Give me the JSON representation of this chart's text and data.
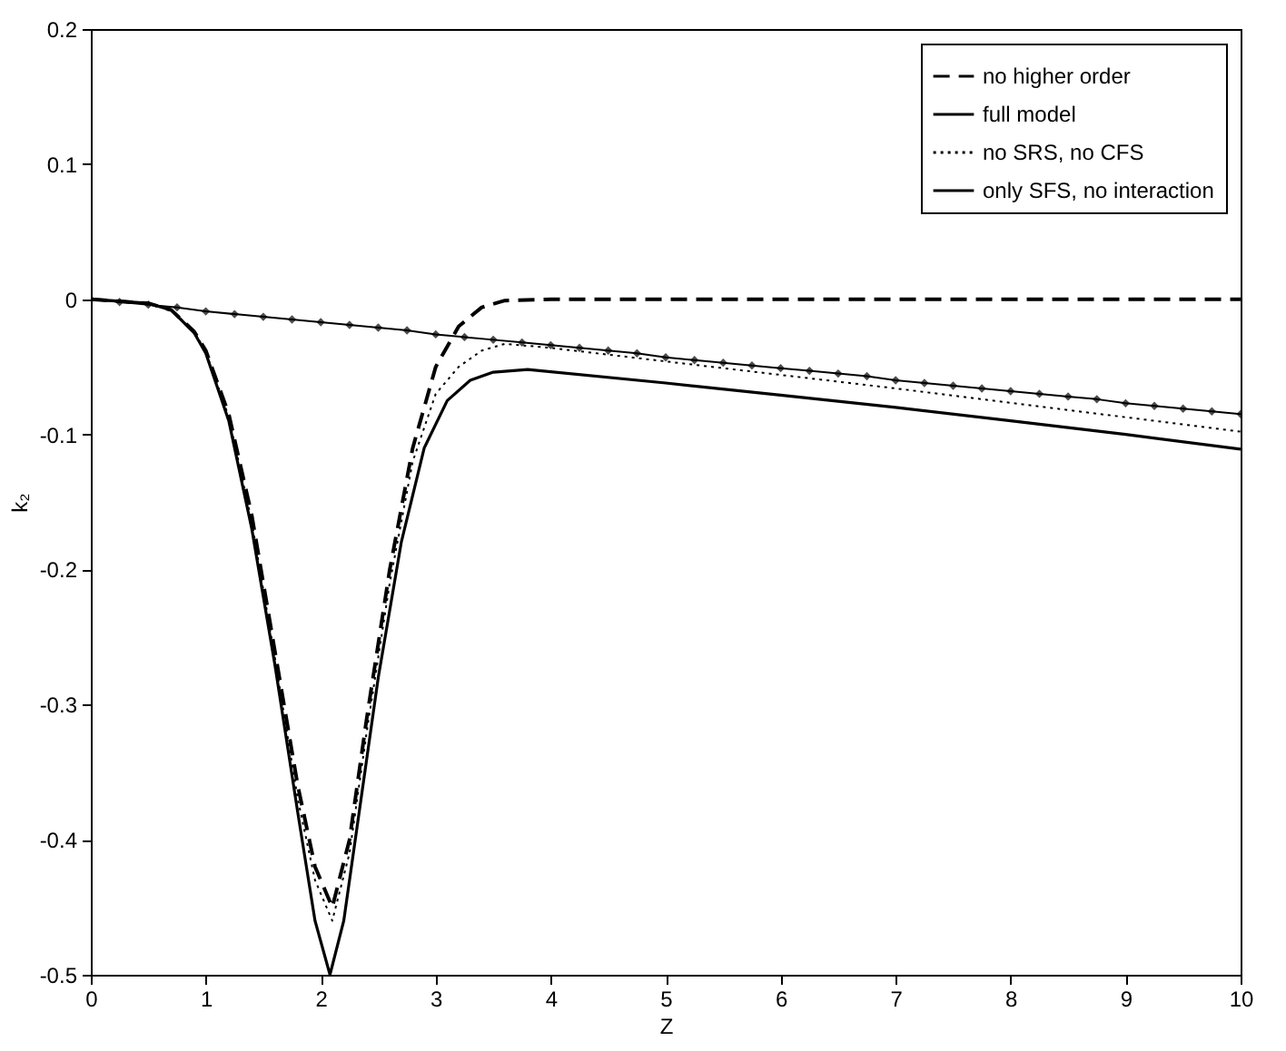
{
  "chart_data": {
    "type": "line",
    "xlabel": "Z",
    "ylabel": "k₂",
    "xlim": [
      0,
      10
    ],
    "xticks": [
      0,
      1,
      2,
      3,
      4,
      5,
      6,
      7,
      8,
      9,
      10
    ],
    "ylim": [
      -0.5,
      0.2
    ],
    "yticks": [
      -0.5,
      -0.4,
      -0.3,
      -0.2,
      -0.1,
      0,
      0.1,
      0.2
    ],
    "grid": false,
    "legend": "top right",
    "series": [
      {
        "name": "no higher order",
        "color": "#000000",
        "line_style": "dashed",
        "x": [
          0,
          0.5,
          0.7,
          0.9,
          1.0,
          1.2,
          1.4,
          1.6,
          1.8,
          1.95,
          2.1,
          2.25,
          2.4,
          2.6,
          2.8,
          3.0,
          3.2,
          3.4,
          3.6,
          4,
          10
        ],
        "values": [
          0,
          -0.003,
          -0.008,
          -0.024,
          -0.038,
          -0.085,
          -0.16,
          -0.26,
          -0.36,
          -0.42,
          -0.45,
          -0.4,
          -0.31,
          -0.2,
          -0.11,
          -0.05,
          -0.02,
          -0.006,
          -0.001,
          0,
          0
        ]
      },
      {
        "name": "full model",
        "color": "#000000",
        "line_style": "solid",
        "x": [
          0,
          0.5,
          0.7,
          0.9,
          1.0,
          1.2,
          1.4,
          1.6,
          1.8,
          1.95,
          2.08,
          2.2,
          2.35,
          2.5,
          2.7,
          2.9,
          3.1,
          3.3,
          3.5,
          3.8,
          5,
          6,
          7,
          8,
          9,
          10
        ],
        "values": [
          0,
          -0.003,
          -0.008,
          -0.025,
          -0.04,
          -0.09,
          -0.17,
          -0.27,
          -0.38,
          -0.46,
          -0.5,
          -0.46,
          -0.37,
          -0.28,
          -0.18,
          -0.11,
          -0.075,
          -0.06,
          -0.054,
          -0.052,
          -0.062,
          -0.071,
          -0.08,
          -0.09,
          -0.1,
          -0.111
        ]
      },
      {
        "name": "no SRS, no CFS",
        "color": "#000000",
        "line_style": "dotted",
        "x": [
          0,
          0.5,
          0.7,
          0.9,
          1.0,
          1.2,
          1.4,
          1.6,
          1.8,
          1.95,
          2.1,
          2.25,
          2.4,
          2.6,
          2.8,
          3.0,
          3.2,
          3.4,
          3.6,
          4,
          7,
          10
        ],
        "values": [
          0,
          -0.003,
          -0.008,
          -0.024,
          -0.039,
          -0.087,
          -0.165,
          -0.265,
          -0.37,
          -0.43,
          -0.46,
          -0.41,
          -0.32,
          -0.21,
          -0.12,
          -0.07,
          -0.05,
          -0.038,
          -0.033,
          -0.036,
          -0.066,
          -0.098
        ]
      },
      {
        "name": "only SFS, no interaction",
        "color": "#000000",
        "line_style": "solid",
        "marker": "diamond",
        "x": [
          0,
          0.25,
          0.5,
          0.75,
          1,
          1.25,
          1.5,
          1.75,
          2,
          2.25,
          2.5,
          2.75,
          3,
          3.25,
          3.5,
          3.75,
          4,
          4.25,
          4.5,
          4.75,
          5,
          5.25,
          5.5,
          5.75,
          6,
          6.25,
          6.5,
          6.75,
          7,
          7.25,
          7.5,
          7.75,
          8,
          8.25,
          8.5,
          8.75,
          9,
          9.25,
          9.5,
          9.75,
          10
        ],
        "values": [
          0,
          -0.002,
          -0.004,
          -0.006,
          -0.009,
          -0.011,
          -0.013,
          -0.015,
          -0.017,
          -0.019,
          -0.021,
          -0.023,
          -0.026,
          -0.028,
          -0.03,
          -0.032,
          -0.034,
          -0.036,
          -0.038,
          -0.04,
          -0.043,
          -0.045,
          -0.047,
          -0.049,
          -0.051,
          -0.053,
          -0.055,
          -0.057,
          -0.06,
          -0.062,
          -0.064,
          -0.066,
          -0.068,
          -0.07,
          -0.072,
          -0.074,
          -0.077,
          -0.079,
          -0.081,
          -0.083,
          -0.085
        ]
      }
    ]
  }
}
